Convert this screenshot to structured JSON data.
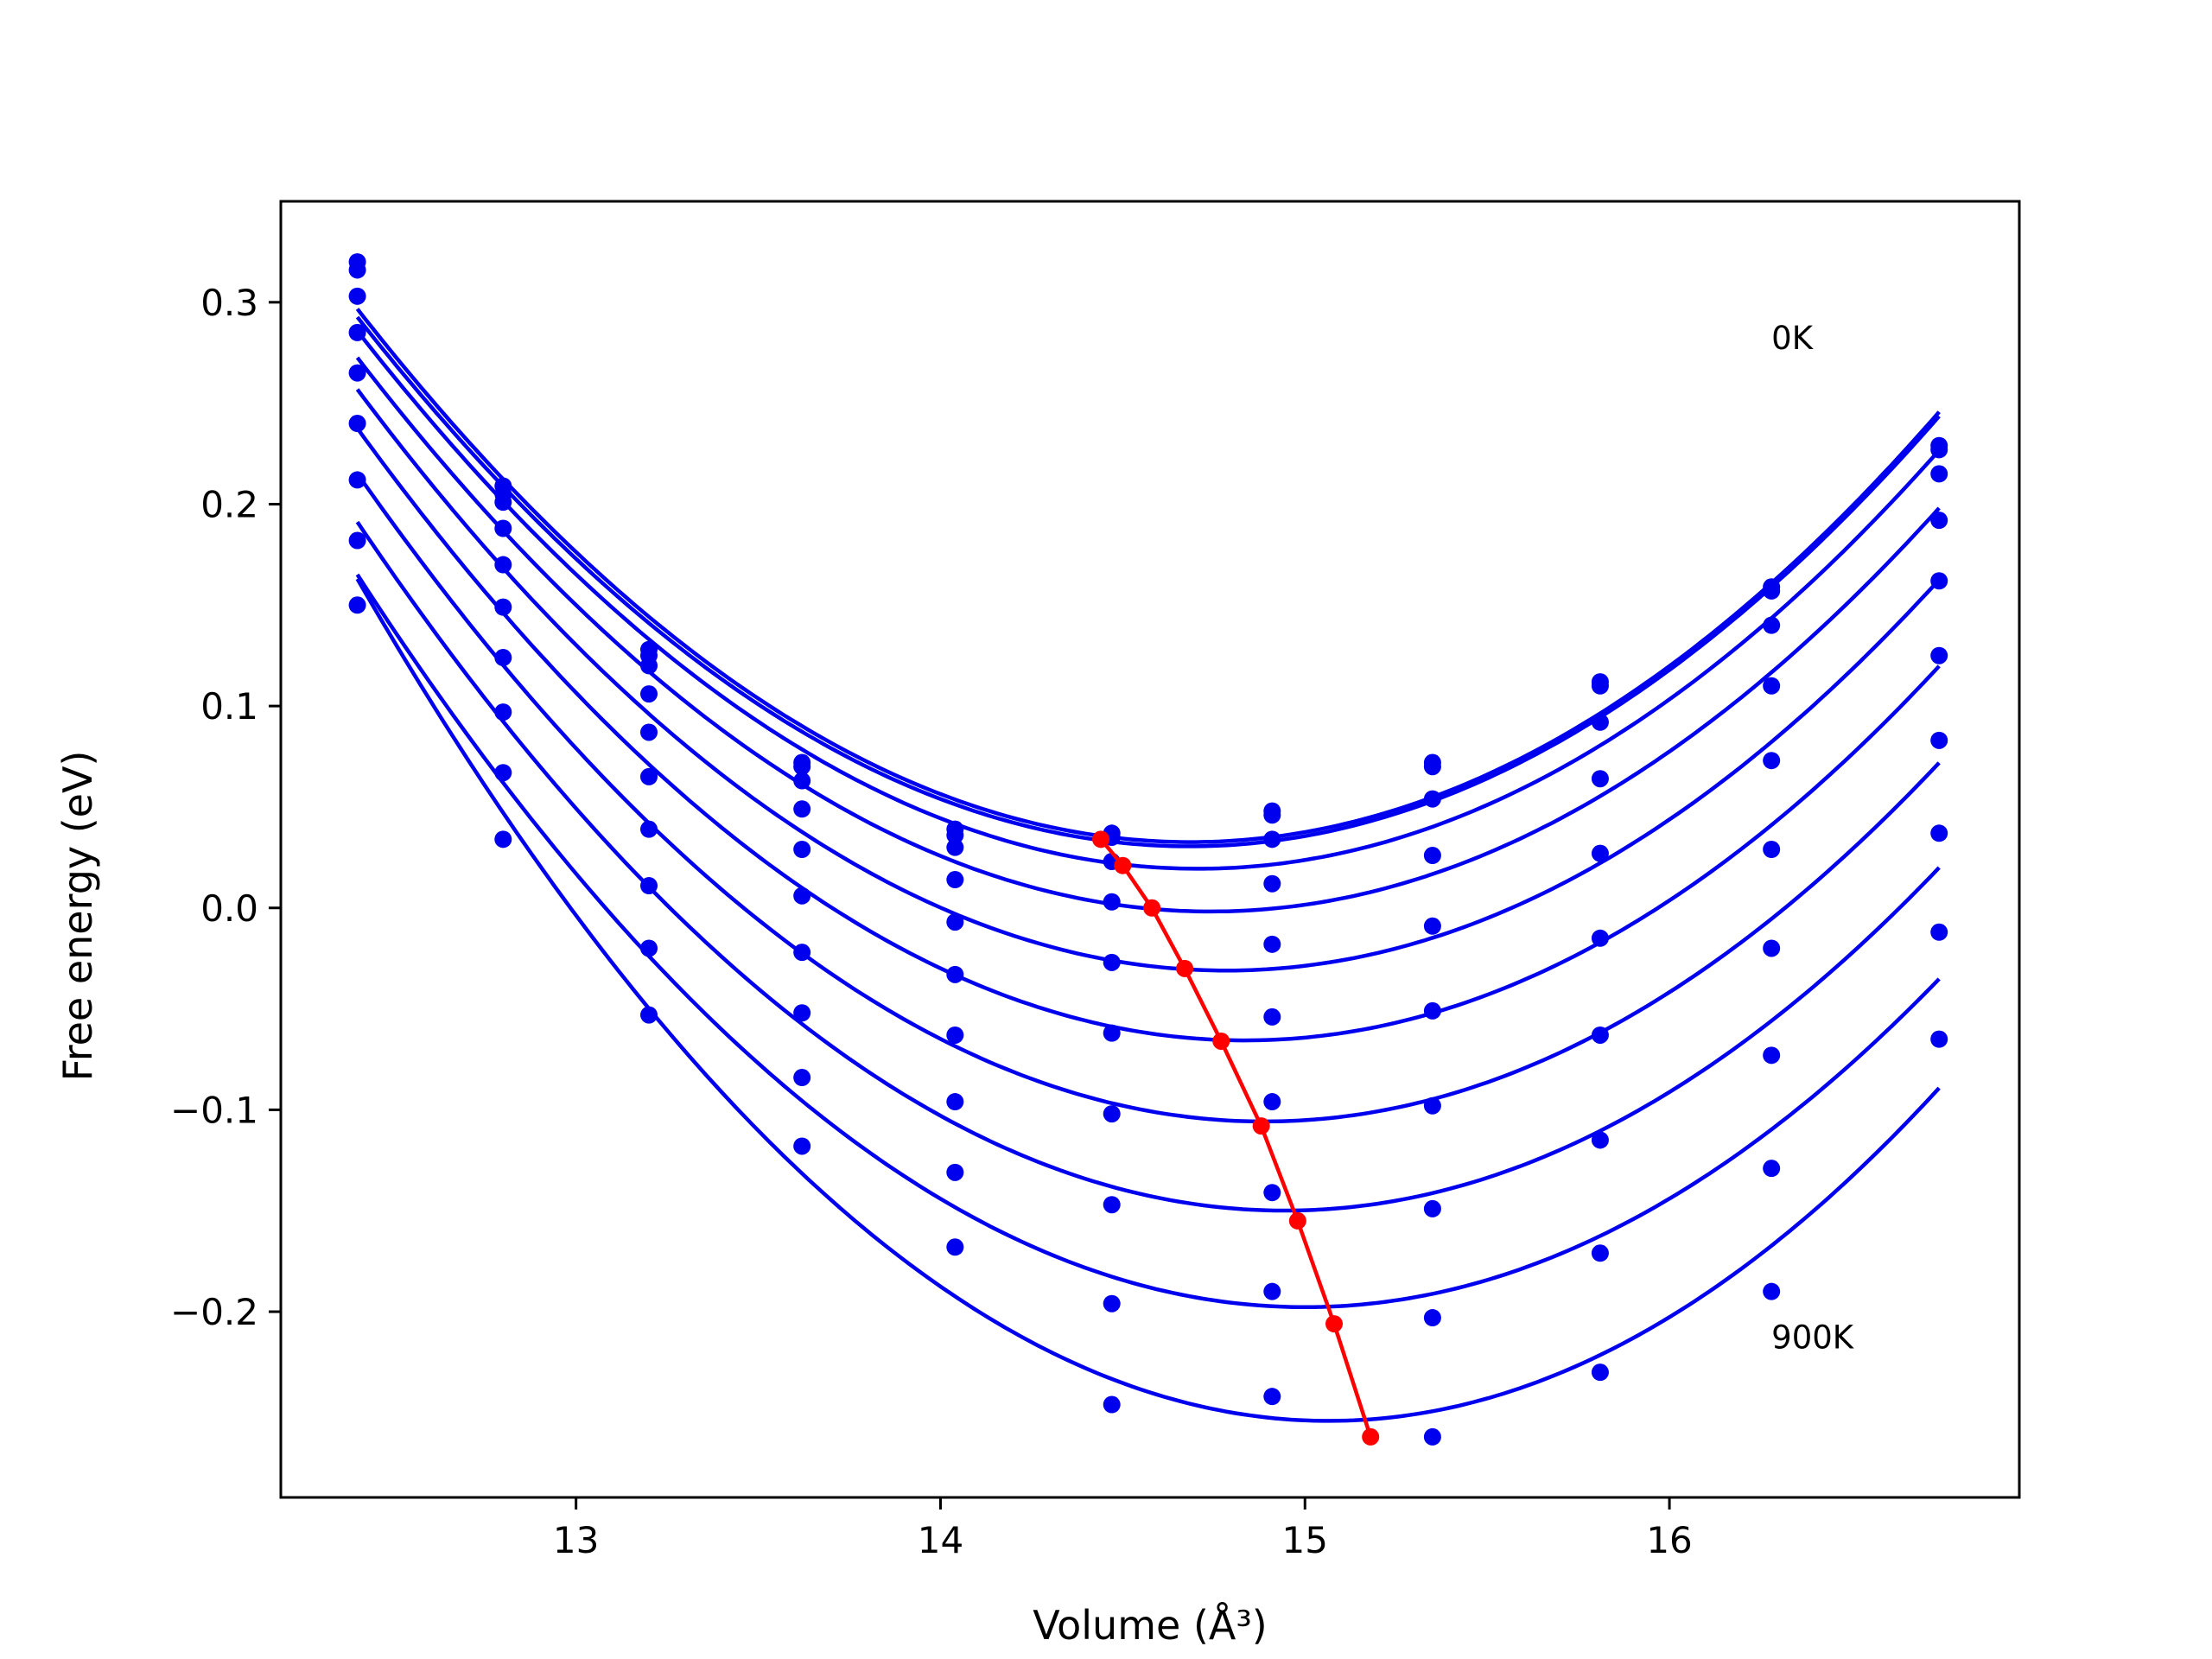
{
  "chart_data": {
    "type": "scatter",
    "xlabel": "Volume (Å³)",
    "ylabel": "Free energy (eV)",
    "xlim": [
      12.19,
      16.96
    ],
    "ylim": [
      -0.292,
      0.35
    ],
    "xticks": [
      13,
      14,
      15,
      16
    ],
    "xtick_labels": [
      "13",
      "14",
      "15",
      "16"
    ],
    "yticks": [
      0.3,
      0.2,
      0.1,
      0.0,
      -0.1,
      -0.2
    ],
    "ytick_labels": [
      "0.3",
      "0.2",
      "0.1",
      "0.0",
      "−0.1",
      "−0.2"
    ],
    "grid": false,
    "legend": null,
    "annotations": [
      {
        "text": "0K",
        "x": 16.28,
        "y": 0.282
      },
      {
        "text": "900K",
        "x": 16.28,
        "y": -0.213
      }
    ],
    "colors": {
      "curves": "#0000ee",
      "minima": "#ff0000",
      "frame": "#000000"
    },
    "volumes": [
      12.4,
      12.8,
      13.2,
      13.62,
      14.04,
      14.47,
      14.91,
      15.35,
      15.81,
      16.28,
      16.74
    ],
    "series": [
      {
        "values": [
          0.32,
          0.209,
          0.128,
          0.072,
          0.039,
          0.037,
          0.048,
          0.072,
          0.112,
          0.159,
          0.229
        ]
      },
      {
        "values": [
          0.316,
          0.205,
          0.125,
          0.07,
          0.036,
          0.035,
          0.046,
          0.07,
          0.11,
          0.157,
          0.227
        ]
      },
      {
        "values": [
          0.303,
          0.201,
          0.12,
          0.063,
          0.03,
          0.023,
          0.034,
          0.054,
          0.092,
          0.14,
          0.215
        ]
      },
      {
        "values": [
          0.285,
          0.188,
          0.106,
          0.049,
          0.014,
          0.003,
          0.012,
          0.026,
          0.064,
          0.11,
          0.192
        ]
      },
      {
        "values": [
          0.265,
          0.17,
          0.087,
          0.029,
          -0.007,
          -0.027,
          -0.018,
          -0.009,
          0.027,
          0.073,
          0.162
        ]
      },
      {
        "values": [
          0.24,
          0.149,
          0.065,
          0.006,
          -0.033,
          -0.062,
          -0.054,
          -0.051,
          -0.015,
          0.029,
          0.125
        ]
      },
      {
        "values": [
          0.212,
          0.124,
          0.039,
          -0.022,
          -0.063,
          -0.102,
          -0.096,
          -0.098,
          -0.063,
          -0.02,
          0.083
        ]
      },
      {
        "values": [
          0.182,
          0.097,
          0.011,
          -0.052,
          -0.096,
          -0.147,
          -0.141,
          -0.149,
          -0.115,
          -0.073,
          0.037
        ]
      },
      {
        "values": [
          0.15,
          0.067,
          -0.02,
          -0.084,
          -0.131,
          -0.196,
          -0.19,
          -0.203,
          -0.171,
          -0.129,
          -0.012
        ]
      },
      {
        "values": [
          null,
          0.034,
          -0.053,
          -0.118,
          -0.168,
          -0.246,
          -0.242,
          -0.262,
          -0.23,
          -0.19,
          -0.065
        ]
      }
    ],
    "minima": {
      "x": [
        14.44,
        14.5,
        14.58,
        14.67,
        14.77,
        14.88,
        14.98,
        15.08,
        15.18
      ],
      "y": [
        0.034,
        0.021,
        0.0,
        -0.03,
        -0.066,
        -0.108,
        -0.155,
        -0.206,
        -0.262
      ]
    }
  }
}
